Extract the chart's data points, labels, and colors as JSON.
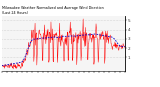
{
  "bg_color": "#ffffff",
  "plot_bg_color": "#f5f5f5",
  "grid_color": "#bbbbbb",
  "red_line_color": "#ff0000",
  "blue_line_color": "#0000cc",
  "spine_color": "#000000",
  "y_ticks": [
    1,
    2,
    3,
    4,
    5
  ],
  "ylim": [
    -0.5,
    5.5
  ],
  "xlim": [
    0,
    287
  ],
  "num_points": 288,
  "title_line1": "Milwaukee Weather Normalized and Average Wind Direction",
  "title_line2": "(Last 24 Hours)"
}
